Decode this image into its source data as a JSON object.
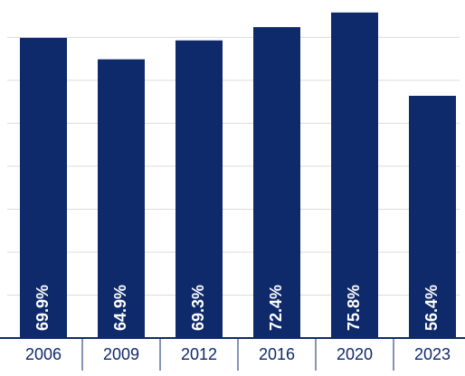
{
  "chart_data": {
    "type": "bar",
    "categories": [
      "2006",
      "2009",
      "2012",
      "2016",
      "2020",
      "2023"
    ],
    "values": [
      69.9,
      64.9,
      69.3,
      72.4,
      75.8,
      56.4
    ],
    "value_labels": [
      "69.9%",
      "64.9%",
      "69.3%",
      "72.4%",
      "75.8%",
      "56.4%"
    ],
    "color": "#0f2a6b",
    "ylim": [
      0,
      78.5
    ],
    "yticks": [
      0,
      10,
      20,
      30,
      40,
      50,
      60,
      70
    ],
    "grid": true
  }
}
